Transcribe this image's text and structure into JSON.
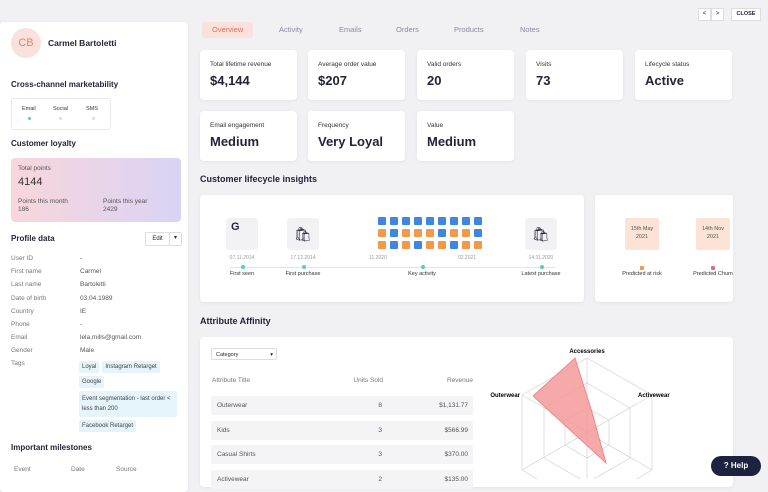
{
  "header": {
    "initials": "CB",
    "name": "Carmel Bartoletti"
  },
  "nav": {
    "tabs": [
      "Overview",
      "Activity",
      "Emails",
      "Orders",
      "Products",
      "Notes"
    ],
    "prev": "<",
    "next": ">",
    "close": "CLOSE"
  },
  "marketability": {
    "title": "Cross-channel marketability",
    "channels": [
      "Email",
      "Social",
      "SMS"
    ]
  },
  "loyalty": {
    "title": "Customer loyalty",
    "total_label": "Total points",
    "total": "4144",
    "month_label": "Points this month",
    "month": "186",
    "year_label": "Points this year",
    "year": "2429"
  },
  "profile": {
    "title": "Profile data",
    "edit": "Edit",
    "fields": [
      [
        "User ID",
        "-"
      ],
      [
        "First name",
        "Carmel"
      ],
      [
        "Last name",
        "Bartoletti"
      ],
      [
        "Date of birth",
        "03.04.1989"
      ],
      [
        "Country",
        "IE"
      ],
      [
        "Phone",
        "-"
      ],
      [
        "Email",
        "lela.mills@gmail.com"
      ],
      [
        "Gender",
        "Male"
      ]
    ],
    "tags_label": "Tags",
    "tags": [
      "Loyal",
      "Instagram Retarget",
      "Google",
      "Event segmentation - last order < less than 200",
      "Facebook Retarget"
    ]
  },
  "milestones": {
    "title": "Important milestones",
    "columns": [
      "Event",
      "Date",
      "Source"
    ]
  },
  "stats": [
    {
      "label": "Total lifetime revenue",
      "value": "$4,144"
    },
    {
      "label": "Average order value",
      "value": "$207"
    },
    {
      "label": "Valid orders",
      "value": "20"
    },
    {
      "label": "Visits",
      "value": "73"
    },
    {
      "label": "Lifecycle status",
      "value": "Active"
    },
    {
      "label": "Email engagement",
      "value": "Medium"
    },
    {
      "label": "Frequency",
      "value": "Very Loyal"
    },
    {
      "label": "Value",
      "value": "Medium"
    }
  ],
  "lifecycle": {
    "title": "Customer lifecycle insights",
    "icon_text": "G",
    "dates": [
      "07.11.2014",
      "17.12.2014",
      "11.2020",
      "02.2021",
      "14.11.2020"
    ],
    "labels": [
      "First seen",
      "First purchase",
      "Key activity",
      "Latest purchase"
    ],
    "predictions": [
      {
        "date": "15th May 2021",
        "label": "Predicted at risk"
      },
      {
        "date": "14th Nov 2021",
        "label": "Predicted Churn"
      }
    ]
  },
  "affinity": {
    "title": "Attribute Affinity",
    "filter": "Category",
    "columns": [
      "Attribute Title",
      "Units Sold",
      "Revenue"
    ],
    "rows": [
      [
        "Outerwear",
        "8",
        "$1,131.77"
      ],
      [
        "Kids",
        "3",
        "$566.99"
      ],
      [
        "Casual Shirts",
        "3",
        "$370.00"
      ],
      [
        "Activewear",
        "2",
        "$135.00"
      ]
    ],
    "radar_labels": [
      "Accessories",
      "Outerwear",
      "Activewear"
    ]
  },
  "help": "Help"
}
